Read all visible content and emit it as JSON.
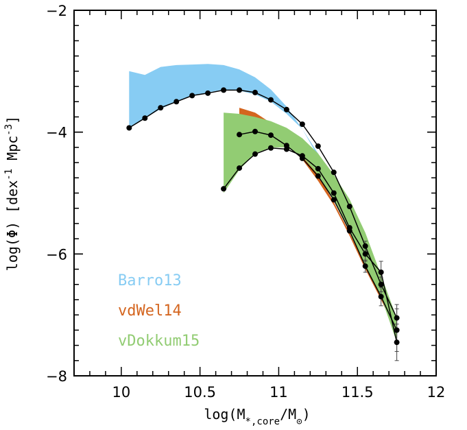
{
  "chart_data": {
    "type": "line",
    "xlabel": "log(M*,core/M⊙)",
    "ylabel": "log(Φ) [dex⁻¹ Mpc⁻³]",
    "xlim": [
      9.7,
      12.0
    ],
    "ylim": [
      -8,
      -2
    ],
    "xticks": [
      10,
      10.5,
      11,
      11.5,
      12
    ],
    "xtick_labels": [
      "10",
      "10.5",
      "11",
      "11.5",
      "12"
    ],
    "yticks": [
      -8,
      -6,
      -4,
      -2
    ],
    "ytick_labels": [
      "−8",
      "−6",
      "−4",
      "−2"
    ],
    "grid": false,
    "legend_position": "bottom-left",
    "bands": [
      {
        "name": "Barro13",
        "color": "#87ccf3",
        "upper": [
          [
            10.05,
            -3.0
          ],
          [
            10.15,
            -3.06
          ],
          [
            10.25,
            -2.93
          ],
          [
            10.35,
            -2.9
          ],
          [
            10.45,
            -2.89
          ],
          [
            10.55,
            -2.88
          ],
          [
            10.65,
            -2.9
          ],
          [
            10.75,
            -2.97
          ],
          [
            10.85,
            -3.1
          ],
          [
            10.95,
            -3.3
          ],
          [
            11.05,
            -3.58
          ],
          [
            11.15,
            -3.95
          ],
          [
            11.25,
            -4.4
          ],
          [
            11.35,
            -4.85
          ],
          [
            11.45,
            -5.3
          ]
        ],
        "lower": [
          [
            10.05,
            -3.92
          ],
          [
            10.15,
            -3.77
          ],
          [
            10.25,
            -3.62
          ],
          [
            10.35,
            -3.5
          ],
          [
            10.45,
            -3.4
          ],
          [
            10.55,
            -3.35
          ],
          [
            10.65,
            -3.3
          ],
          [
            10.75,
            -3.32
          ],
          [
            10.85,
            -3.38
          ],
          [
            10.95,
            -3.5
          ],
          [
            11.05,
            -3.7
          ],
          [
            11.15,
            -3.95
          ],
          [
            11.25,
            -4.35
          ],
          [
            11.35,
            -4.8
          ],
          [
            11.45,
            -5.3
          ]
        ]
      },
      {
        "name": "vdWel14",
        "color": "#d4651f",
        "upper": [
          [
            10.75,
            -3.6
          ],
          [
            10.85,
            -3.68
          ],
          [
            10.95,
            -3.85
          ],
          [
            11.05,
            -4.07
          ],
          [
            11.15,
            -4.33
          ],
          [
            11.25,
            -4.7
          ],
          [
            11.35,
            -5.15
          ],
          [
            11.45,
            -5.65
          ],
          [
            11.55,
            -6.2
          ],
          [
            11.65,
            -6.7
          ],
          [
            11.75,
            -7.25
          ]
        ],
        "lower": [
          [
            10.75,
            -4.02
          ],
          [
            10.85,
            -3.97
          ],
          [
            10.95,
            -4.07
          ],
          [
            11.05,
            -4.2
          ],
          [
            11.15,
            -4.45
          ],
          [
            11.25,
            -4.8
          ],
          [
            11.35,
            -5.2
          ],
          [
            11.45,
            -5.7
          ],
          [
            11.55,
            -6.25
          ],
          [
            11.65,
            -6.75
          ],
          [
            11.75,
            -7.3
          ]
        ]
      },
      {
        "name": "vDokkum15",
        "color": "#92cc73",
        "upper": [
          [
            10.65,
            -3.68
          ],
          [
            10.75,
            -3.7
          ],
          [
            10.85,
            -3.75
          ],
          [
            10.95,
            -3.82
          ],
          [
            11.05,
            -3.93
          ],
          [
            11.15,
            -4.1
          ],
          [
            11.25,
            -4.35
          ],
          [
            11.35,
            -4.7
          ],
          [
            11.45,
            -5.1
          ],
          [
            11.55,
            -5.65
          ],
          [
            11.65,
            -6.35
          ],
          [
            11.75,
            -7.05
          ]
        ],
        "lower": [
          [
            10.65,
            -5.0
          ],
          [
            10.75,
            -4.62
          ],
          [
            10.85,
            -4.35
          ],
          [
            10.95,
            -4.25
          ],
          [
            11.05,
            -4.25
          ],
          [
            11.15,
            -4.4
          ],
          [
            11.25,
            -4.7
          ],
          [
            11.35,
            -5.1
          ],
          [
            11.45,
            -5.6
          ],
          [
            11.55,
            -6.2
          ],
          [
            11.65,
            -6.7
          ],
          [
            11.75,
            -7.45
          ]
        ]
      }
    ],
    "series": [
      {
        "x": [
          10.05,
          10.15,
          10.25,
          10.35,
          10.45,
          10.55,
          10.65,
          10.75,
          10.85,
          10.95,
          11.05,
          11.15,
          11.25,
          11.35,
          11.45,
          11.55,
          11.65,
          11.75
        ],
        "y": [
          -3.93,
          -3.77,
          -3.6,
          -3.5,
          -3.4,
          -3.36,
          -3.31,
          -3.31,
          -3.35,
          -3.47,
          -3.63,
          -3.87,
          -4.23,
          -4.66,
          -5.22,
          -5.87,
          -6.5,
          -7.05
        ],
        "yerr": [
          0,
          0,
          0,
          0,
          0,
          0,
          0,
          0,
          0,
          0,
          0,
          0,
          0,
          0,
          0,
          0.08,
          0.12,
          0.22
        ]
      },
      {
        "x": [
          10.75,
          10.85,
          10.95,
          11.05,
          11.15,
          11.25,
          11.35,
          11.45,
          11.55,
          11.65,
          11.75
        ],
        "y": [
          -4.04,
          -3.99,
          -4.05,
          -4.22,
          -4.43,
          -4.72,
          -5.11,
          -5.62,
          -6.2,
          -6.7,
          -7.25
        ],
        "yerr": [
          0,
          0,
          0,
          0,
          0,
          0,
          0,
          0,
          0.1,
          0.15,
          0.35
        ]
      },
      {
        "x": [
          10.65,
          10.75,
          10.85,
          10.95,
          11.05,
          11.15,
          11.25,
          11.35,
          11.45,
          11.55,
          11.65,
          11.75
        ],
        "y": [
          -4.93,
          -4.59,
          -4.36,
          -4.26,
          -4.28,
          -4.39,
          -4.6,
          -5.0,
          -5.57,
          -6.0,
          -6.3,
          -7.45
        ],
        "yerr": [
          0,
          0,
          0,
          0,
          0,
          0,
          0,
          0,
          0,
          0.12,
          0.18,
          0.3
        ]
      }
    ]
  }
}
